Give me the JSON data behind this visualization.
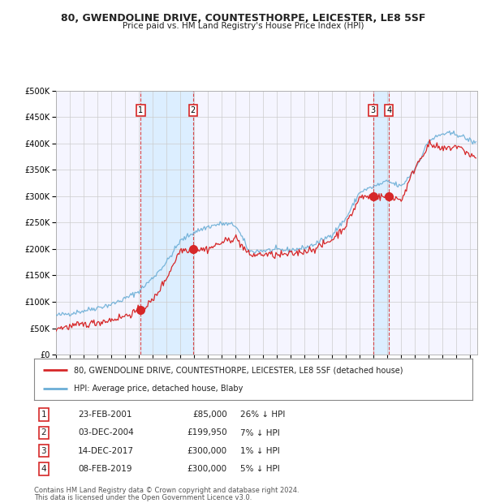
{
  "title": "80, GWENDOLINE DRIVE, COUNTESTHORPE, LEICESTER, LE8 5SF",
  "subtitle": "Price paid vs. HM Land Registry's House Price Index (HPI)",
  "legend_house": "80, GWENDOLINE DRIVE, COUNTESTHORPE, LEICESTER, LE8 5SF (detached house)",
  "legend_hpi": "HPI: Average price, detached house, Blaby",
  "footer1": "Contains HM Land Registry data © Crown copyright and database right 2024.",
  "footer2": "This data is licensed under the Open Government Licence v3.0.",
  "transactions": [
    {
      "num": 1,
      "date": "23-FEB-2001",
      "price": "£85,000",
      "hpi": "26% ↓ HPI",
      "year": 2001.14
    },
    {
      "num": 2,
      "date": "03-DEC-2004",
      "price": "£199,950",
      "hpi": "7% ↓ HPI",
      "year": 2004.92
    },
    {
      "num": 3,
      "date": "14-DEC-2017",
      "price": "£300,000",
      "hpi": "1% ↓ HPI",
      "year": 2017.95
    },
    {
      "num": 4,
      "date": "08-FEB-2019",
      "price": "£300,000",
      "hpi": "5% ↓ HPI",
      "year": 2019.11
    }
  ],
  "transaction_values": [
    85000,
    199950,
    300000,
    300000
  ],
  "ylim": [
    0,
    500000
  ],
  "yticks": [
    0,
    50000,
    100000,
    150000,
    200000,
    250000,
    300000,
    350000,
    400000,
    450000,
    500000
  ],
  "xlim_start": 1995.0,
  "xlim_end": 2025.5,
  "hpi_color": "#6baed6",
  "house_color": "#d62728",
  "shade_color": "#dceeff",
  "vline_color": "#d62728",
  "grid_color": "#cccccc",
  "bg_color": "#ffffff",
  "plot_bg": "#f5f5ff"
}
